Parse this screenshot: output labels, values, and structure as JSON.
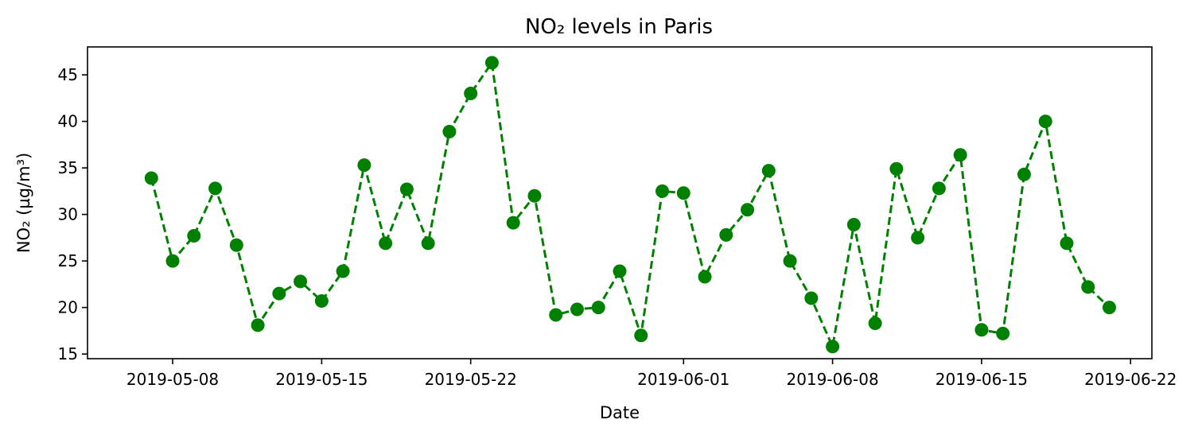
{
  "chart_data": {
    "type": "line",
    "title": "NO₂ levels in Paris",
    "xlabel": "Date",
    "ylabel": "NO₂ (µg/m³)",
    "xlim": [
      "2019-05-04",
      "2019-06-23"
    ],
    "ylim": [
      14.5,
      48
    ],
    "x_ticks": [
      "2019-05-08",
      "2019-05-15",
      "2019-05-22",
      "2019-06-01",
      "2019-06-08",
      "2019-06-15",
      "2019-06-22"
    ],
    "y_ticks": [
      15,
      20,
      25,
      30,
      35,
      40,
      45
    ],
    "grid": false,
    "legend": "none",
    "series": [
      {
        "color": "#008000",
        "line_style": "dashed",
        "marker": "circle",
        "x": [
          "2019-05-07",
          "2019-05-08",
          "2019-05-09",
          "2019-05-10",
          "2019-05-11",
          "2019-05-12",
          "2019-05-13",
          "2019-05-14",
          "2019-05-15",
          "2019-05-16",
          "2019-05-17",
          "2019-05-18",
          "2019-05-19",
          "2019-05-20",
          "2019-05-21",
          "2019-05-22",
          "2019-05-23",
          "2019-05-24",
          "2019-05-25",
          "2019-05-26",
          "2019-05-27",
          "2019-05-28",
          "2019-05-29",
          "2019-05-30",
          "2019-05-31",
          "2019-06-01",
          "2019-06-02",
          "2019-06-03",
          "2019-06-04",
          "2019-06-05",
          "2019-06-06",
          "2019-06-07",
          "2019-06-08",
          "2019-06-09",
          "2019-06-10",
          "2019-06-11",
          "2019-06-12",
          "2019-06-13",
          "2019-06-14",
          "2019-06-15",
          "2019-06-16",
          "2019-06-17",
          "2019-06-18",
          "2019-06-19",
          "2019-06-20",
          "2019-06-21"
        ],
        "y": [
          33.9,
          25.0,
          27.7,
          32.8,
          26.7,
          18.1,
          21.5,
          22.8,
          20.7,
          23.9,
          35.3,
          26.9,
          32.7,
          26.9,
          38.9,
          43.0,
          46.3,
          29.1,
          32.0,
          19.2,
          19.8,
          20.0,
          23.9,
          17.0,
          32.5,
          32.3,
          23.3,
          27.8,
          30.5,
          34.7,
          25.0,
          21.0,
          15.8,
          28.9,
          18.3,
          34.9,
          27.5,
          32.8,
          36.4,
          17.6,
          17.2,
          34.3,
          40.0,
          26.9,
          22.2,
          20.0
        ]
      }
    ]
  }
}
